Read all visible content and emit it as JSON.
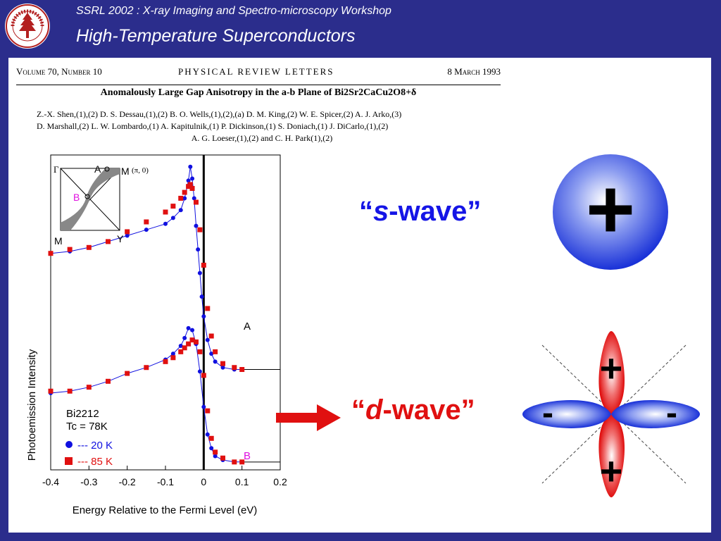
{
  "header": {
    "workshop": "SSRL 2002 : X-ray Imaging and Spectro-microscopy Workshop",
    "title": "High-Temperature Superconductors",
    "logo_icon": "stanford-university-seal-icon"
  },
  "paper": {
    "volume": "Volume 70, Number 10",
    "journal": "PHYSICAL REVIEW LETTERS",
    "date": "8 March 1993",
    "title": "Anomalously Large Gap Anisotropy in the a-b Plane of Bi2Sr2CaCu2O8+δ",
    "authors_1": "Z.-X. Shen,(1),(2) D. S. Dessau,(1),(2) B. O. Wells,(1),(2),(a) D. M. King,(2) W. E. Spicer,(2) A. J. Arko,(3)",
    "authors_2": "D. Marshall,(2) L. W. Lombardo,(1) A. Kapitulnik,(1) P. Dickinson,(1) S. Doniach,(1) J. DiCarlo,(1),(2)",
    "authors_3": "A. G. Loeser,(1),(2) and C. H. Park(1),(2)"
  },
  "chart_data": {
    "type": "scatter",
    "xlabel": "Energy Relative to the Fermi Level (eV)",
    "ylabel": "Photoemission Intensity",
    "xlim": [
      -0.4,
      0.2
    ],
    "x_ticks": [
      "-0.4",
      "-0.3",
      "-0.2",
      "-0.1",
      "0",
      "0.1",
      "0.2"
    ],
    "sample": "Bi2212",
    "tc": "Tc = 78K",
    "legend": [
      {
        "name": "--- 20 K",
        "marker": "circle",
        "color": "#1010e0"
      },
      {
        "name": "--- 85 K",
        "marker": "square",
        "color": "#e01010"
      }
    ],
    "curve_labels": {
      "A": "A",
      "B": "B"
    },
    "inset": {
      "gamma": "Γ",
      "A": "A",
      "M_top": "M",
      "point": "(π, 0)",
      "B": "B",
      "M_bottom": "M",
      "Y": "Y"
    },
    "series": [
      {
        "name": "A 20 K",
        "x": [
          -0.4,
          -0.35,
          -0.3,
          -0.25,
          -0.2,
          -0.15,
          -0.1,
          -0.08,
          -0.06,
          -0.05,
          -0.04,
          -0.035,
          -0.03,
          -0.025,
          -0.02,
          -0.015,
          -0.01,
          -0.005,
          0,
          0.01,
          0.02,
          0.03,
          0.05,
          0.08,
          0.1
        ],
        "y": [
          5.5,
          5.55,
          5.65,
          5.8,
          5.95,
          6.1,
          6.25,
          6.4,
          6.6,
          6.9,
          7.35,
          7.7,
          7.4,
          6.9,
          6.2,
          5.6,
          5.0,
          4.4,
          3.9,
          3.3,
          2.95,
          2.75,
          2.6,
          2.55,
          2.55
        ]
      },
      {
        "name": "A 85 K",
        "x": [
          -0.4,
          -0.35,
          -0.3,
          -0.25,
          -0.2,
          -0.15,
          -0.1,
          -0.08,
          -0.06,
          -0.05,
          -0.04,
          -0.035,
          -0.03,
          -0.02,
          -0.01,
          0,
          0.01,
          0.02,
          0.03,
          0.05,
          0.08,
          0.1
        ],
        "y": [
          5.5,
          5.6,
          5.65,
          5.8,
          6.05,
          6.3,
          6.55,
          6.7,
          6.9,
          7.05,
          7.2,
          7.25,
          7.15,
          6.8,
          6.1,
          5.2,
          4.1,
          3.4,
          3.0,
          2.7,
          2.6,
          2.55
        ]
      },
      {
        "name": "B 20 K",
        "x": [
          -0.4,
          -0.35,
          -0.3,
          -0.25,
          -0.2,
          -0.15,
          -0.1,
          -0.08,
          -0.06,
          -0.05,
          -0.04,
          -0.03,
          -0.02,
          -0.01,
          0,
          0.01,
          0.02,
          0.03,
          0.05,
          0.08,
          0.1
        ],
        "y": [
          1.95,
          2.0,
          2.1,
          2.25,
          2.45,
          2.6,
          2.8,
          2.95,
          3.15,
          3.35,
          3.6,
          3.55,
          3.2,
          2.5,
          1.6,
          0.9,
          0.55,
          0.35,
          0.25,
          0.2,
          0.2
        ]
      },
      {
        "name": "B 85 K",
        "x": [
          -0.4,
          -0.35,
          -0.3,
          -0.25,
          -0.2,
          -0.15,
          -0.1,
          -0.08,
          -0.06,
          -0.05,
          -0.04,
          -0.03,
          -0.02,
          -0.01,
          0,
          0.01,
          0.02,
          0.03,
          0.05,
          0.08,
          0.1
        ],
        "y": [
          2.0,
          2.0,
          2.1,
          2.25,
          2.45,
          2.6,
          2.75,
          2.85,
          3.0,
          3.1,
          3.2,
          3.3,
          3.25,
          3.0,
          2.4,
          1.5,
          0.8,
          0.45,
          0.3,
          0.2,
          0.2
        ]
      }
    ]
  },
  "diagrams": {
    "s_wave_label_open": "“",
    "s_wave_letter": "s",
    "s_wave_label_rest": "-wave”",
    "d_wave_label_open": "“",
    "d_wave_letter": "d",
    "d_wave_label_rest": "-wave”",
    "s_wave_sign": "+",
    "d_wave_plus_top": "+",
    "d_wave_plus_bottom": "+",
    "d_wave_minus_left": "-",
    "d_wave_minus_right": "-"
  },
  "colors": {
    "background": "#2b2d8c",
    "blue": "#1515e6",
    "red": "#e01010"
  }
}
